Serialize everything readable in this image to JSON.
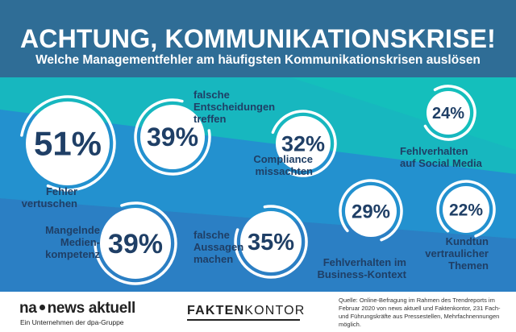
{
  "header": {
    "title": "ACHTUNG, KOMMUNIKATIONSKRISE!",
    "subtitle": "Welche Managementfehler am häufigsten Kommunikationskrisen auslösen"
  },
  "chart_data": {
    "type": "bubble-infographic",
    "unit": "%",
    "items": [
      {
        "label_lines": [
          "Fehler",
          "vertuschen"
        ],
        "value": 51,
        "display": "51%"
      },
      {
        "label_lines": [
          "falsche",
          "Entscheidungen",
          "treffen"
        ],
        "value": 39,
        "display": "39%"
      },
      {
        "label_lines": [
          "Compliance",
          "missachten"
        ],
        "value": 32,
        "display": "32%"
      },
      {
        "label_lines": [
          "Fehlverhalten",
          "auf Social Media"
        ],
        "value": 24,
        "display": "24%"
      },
      {
        "label_lines": [
          "Mangelnde",
          "Medien-",
          "kompetenz"
        ],
        "value": 39,
        "display": "39%"
      },
      {
        "label_lines": [
          "falsche",
          "Aussagen",
          "machen"
        ],
        "value": 35,
        "display": "35%"
      },
      {
        "label_lines": [
          "Fehlverhalten im",
          "Business-Kontext"
        ],
        "value": 29,
        "display": "29%"
      },
      {
        "label_lines": [
          "Kundtun",
          "vertraulicher",
          "Themen"
        ],
        "value": 22,
        "display": "22%"
      }
    ]
  },
  "colors": {
    "header": "#2f6d96",
    "bg_a": "#16b3bd",
    "bg_b": "#1f98cf",
    "bg_c": "#2b7fc4",
    "ring": "#ffffff",
    "text": "#1f3f66"
  },
  "footer": {
    "logo1_left": "na",
    "logo1_right": "news aktuell",
    "logo1_sub": "Ein Unternehmen der dpa-Gruppe",
    "logo2_a": "FAKTEN",
    "logo2_b": "KONTOR",
    "source": "Quelle: Online-Befragung im Rahmen des Trendreports im Februar 2020 von news aktuell und Faktenkontor, 231 Fach- und Führungskräfte aus Pressestellen, Mehrfachnennungen möglich."
  }
}
